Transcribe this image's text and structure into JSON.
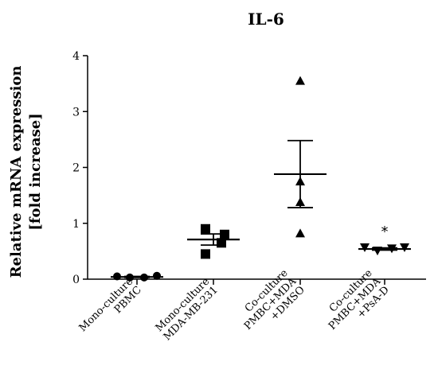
{
  "chart_data": {
    "type": "scatter",
    "title": "IL-6",
    "ylabel_line1": "Relative mRNA expression",
    "ylabel_line2": "[fold increase]",
    "ylim": [
      0,
      4
    ],
    "yticks": [
      "0",
      "1",
      "2",
      "3",
      "4"
    ],
    "groups": [
      {
        "label_lines": [
          "Mono-culture",
          "PBMC"
        ],
        "marker": "circle",
        "points": [
          0.05,
          0.03,
          0.03,
          0.06
        ],
        "mean": 0.04,
        "sem_low": 0.03,
        "sem_high": 0.05,
        "annotation": ""
      },
      {
        "label_lines": [
          "Mono-culture",
          "MDA-MB-231"
        ],
        "marker": "square",
        "points": [
          0.9,
          0.45,
          0.65,
          0.8
        ],
        "mean": 0.71,
        "sem_low": 0.61,
        "sem_high": 0.81,
        "annotation": ""
      },
      {
        "label_lines": [
          "Co-culture",
          "PMBC+MDA",
          "+DMSO"
        ],
        "marker": "triangle-up",
        "points": [
          3.55,
          1.75,
          1.38,
          0.82
        ],
        "mean": 1.88,
        "sem_low": 1.28,
        "sem_high": 2.48,
        "annotation": ""
      },
      {
        "label_lines": [
          "Co-culture",
          "PMBC+MDA",
          "+PsA-D"
        ],
        "marker": "triangle-down",
        "points": [
          0.57,
          0.51,
          0.55,
          0.57
        ],
        "mean": 0.54,
        "sem_low": 0.52,
        "sem_high": 0.56,
        "annotation": "*"
      }
    ]
  }
}
